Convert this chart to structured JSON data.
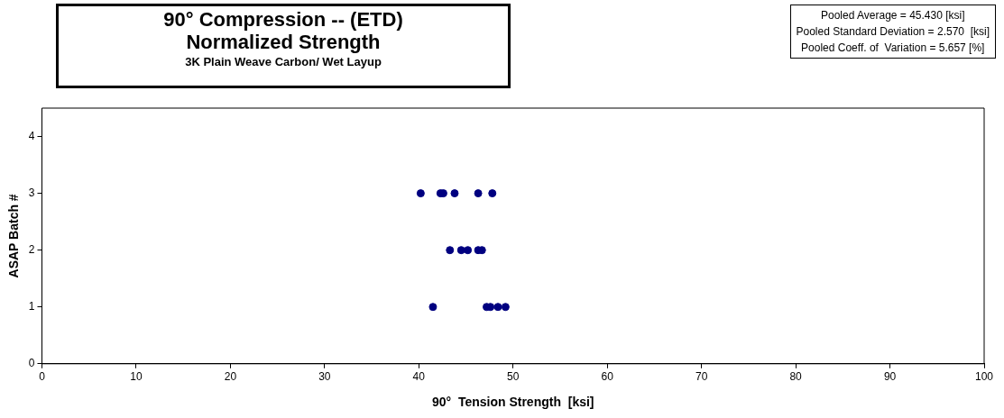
{
  "chart_data": {
    "type": "scatter",
    "title": "90° Compression -- (ETD)\nNormalized Strength",
    "subtitle": "3K Plain Weave Carbon/ Wet Layup",
    "xlabel": "90°  Tension Strength  [ksi]",
    "ylabel": "ASAP Batch #",
    "series": [
      {
        "color": "#000080",
        "x": [
          40.2,
          42.3,
          42.6,
          43.8,
          46.3,
          47.8,
          43.3,
          44.5,
          45.2,
          46.3,
          46.7,
          41.5,
          47.2,
          47.6,
          48.4,
          49.2
        ],
        "values": [
          3,
          3,
          3,
          3,
          3,
          3,
          2,
          2,
          2,
          2,
          2,
          1,
          1,
          1,
          1,
          1
        ]
      }
    ],
    "xlim": [
      0,
      100
    ],
    "xticks": [
      0,
      10,
      20,
      30,
      40,
      50,
      60,
      70,
      80,
      90,
      100
    ],
    "ylim": [
      0,
      4.5
    ],
    "yticks": [
      0,
      1,
      2,
      3,
      4
    ],
    "grid": false,
    "legend": false,
    "marker": "circle",
    "annotations": [
      "Pooled Average = 45.430 [ksi]",
      "Pooled Standard Deviation = 2.570  [ksi]",
      "Pooled Coeff. of  Variation = 5.657 [%]"
    ]
  }
}
